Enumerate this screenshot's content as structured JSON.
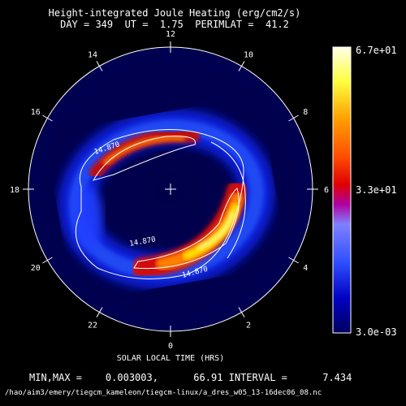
{
  "header": {
    "title": "Height-integrated Joule Heating (erg/cm2/s)",
    "subtitle": "DAY = 349  UT =  1.75  PERIMLAT =  41.2"
  },
  "chart_data": {
    "type": "heatmap",
    "projection": "polar (magnetic local time)",
    "xlabel": "SOLAR LOCAL TIME (HRS)",
    "hour_ticks": [
      "12",
      "10",
      "8",
      "6",
      "4",
      "2",
      "0",
      "22",
      "20",
      "18",
      "16",
      "14"
    ],
    "colorbar": {
      "max_label": "6.7e+01",
      "mid_label": "3.3e+01",
      "min_label": "3.0e-03",
      "range": [
        0.003,
        67
      ],
      "colors": [
        "#000060",
        "#0000c0",
        "#2020ff",
        "#4060ff",
        "#8090ff",
        "#a000a0",
        "#e00000",
        "#ff6000",
        "#ffc000",
        "#ffff60",
        "#ffffe0"
      ]
    },
    "contour_labels": [
      "14.870",
      "14.870",
      "14.870"
    ],
    "min": 0.003003,
    "max": 66.91,
    "interval": 7.434,
    "grid": false
  },
  "footer": {
    "minmax_text": "MIN,MAX =    0.003003,      66.91 INTERVAL =      7.434",
    "source_path": "/hao/aim3/emery/tiegcm_kameleon/tiegcm-linux/a_dres_w05_13-16dec06_08.nc"
  }
}
